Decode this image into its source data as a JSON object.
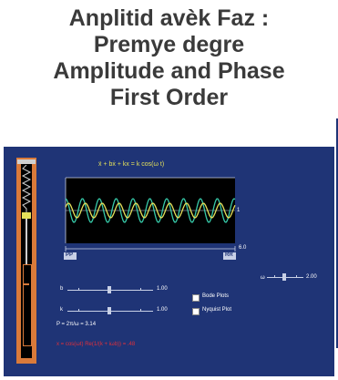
{
  "title": {
    "line1": "Anplitid avèk Faz :",
    "line2": "Premye degre",
    "line3": "Amplitude and Phase",
    "line4": "First Order"
  },
  "sim": {
    "equation": "ẍ + bẋ + kx = k cos(ω t)",
    "plot_marker_right": "1",
    "axis_end_label": "6.0",
    "axis_left_button": "PP",
    "axis_right_button": "RR",
    "sliders": [
      {
        "label": "b",
        "value": "1.00"
      },
      {
        "label": "k",
        "value": "1.00"
      },
      {
        "label": "ω",
        "value": "2.00"
      }
    ],
    "checkboxes": [
      {
        "label": "Bode Plots",
        "checked": false
      },
      {
        "label": "Nyquist Plot",
        "checked": false
      }
    ],
    "period_text": "P = 2π/ω = 3.14",
    "status_text": "x = cos(ωt) Re(1/(k + iωb)) = .48"
  },
  "colors": {
    "panel_bg": "#1f3476",
    "trace_yellow": "#e4e05a",
    "trace_green": "#36c9a8",
    "spring_orange": "#d97a3a",
    "status_red": "#e0303a"
  }
}
